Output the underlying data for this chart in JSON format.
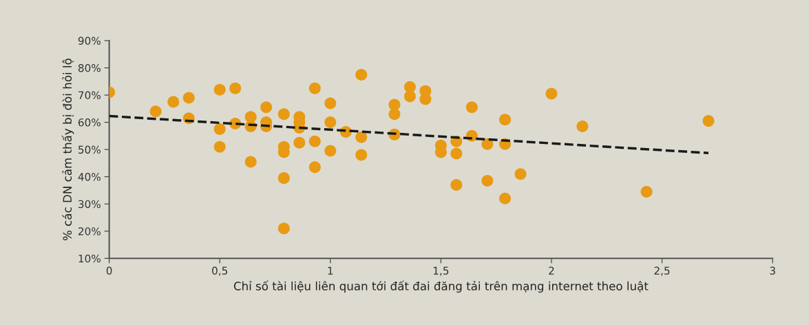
{
  "chart_data": {
    "type": "scatter",
    "xlabel": "Chỉ số tài liệu liên quan tới đất đai đăng tải trên mạng internet theo luật",
    "ylabel": "% các DN cảm thấy bị đòi hỏi lộ",
    "series": [
      {
        "color": "#e89a14",
        "marker": "circle",
        "x": [
          0,
          0.21,
          0.29,
          0.36,
          0.36,
          0.5,
          0.5,
          0.5,
          0.57,
          0.57,
          0.64,
          0.64,
          0.64,
          0.71,
          0.71,
          0.71,
          0.79,
          0.79,
          0.79,
          0.79,
          0.79,
          0.86,
          0.86,
          0.86,
          0.86,
          0.93,
          0.93,
          0.93,
          1.0,
          1.0,
          1.0,
          1.07,
          1.14,
          1.14,
          1.14,
          1.29,
          1.29,
          1.29,
          1.36,
          1.36,
          1.43,
          1.43,
          1.5,
          1.5,
          1.57,
          1.57,
          1.57,
          1.64,
          1.64,
          1.71,
          1.71,
          1.79,
          1.79,
          1.79,
          1.86,
          2.0,
          2.14,
          2.43,
          2.71
        ],
        "values": [
          71,
          64,
          67.5,
          69,
          61.5,
          72,
          57.5,
          51,
          72.5,
          59.5,
          62,
          58.5,
          45.5,
          65.5,
          60,
          58.5,
          63,
          51,
          49,
          39.5,
          21,
          62,
          60,
          58,
          52.5,
          72.5,
          53,
          43.5,
          67,
          60,
          49.5,
          56.5,
          77.5,
          54.5,
          48,
          66.5,
          63,
          55.5,
          73,
          69.5,
          71.5,
          68.5,
          51.5,
          49,
          53,
          48.5,
          37,
          65.5,
          55,
          52,
          38.5,
          61,
          52,
          32,
          41,
          70.5,
          58.5,
          34.5,
          60.5
        ]
      },
      {
        "type": "line",
        "color": "#1a1a1a",
        "line_style": "dashed",
        "x": [
          0,
          2.71
        ],
        "values": [
          62.3,
          48.7
        ]
      }
    ],
    "xlim": [
      0,
      3
    ],
    "xticks": [
      0,
      {
        "value": 0.5,
        "label": "0,5"
      },
      1,
      {
        "value": 1.5,
        "label": "1,5"
      },
      2,
      {
        "value": 2.5,
        "label": "2,5"
      },
      3
    ],
    "ylim": [
      10,
      90
    ],
    "yticks": [
      {
        "value": 10,
        "label": "10%"
      },
      {
        "value": 20,
        "label": "20%"
      },
      {
        "value": 30,
        "label": "30%"
      },
      {
        "value": 40,
        "label": "40%"
      },
      {
        "value": 50,
        "label": "50%"
      },
      {
        "value": 60,
        "label": "60%"
      },
      {
        "value": 70,
        "label": "70%"
      },
      {
        "value": 80,
        "label": "80%"
      },
      {
        "value": 90,
        "label": "90%"
      }
    ],
    "grid": false,
    "legend": false
  }
}
